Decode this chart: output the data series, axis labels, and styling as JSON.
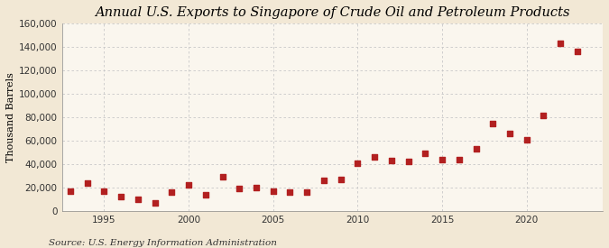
{
  "title": "Annual U.S. Exports to Singapore of Crude Oil and Petroleum Products",
  "ylabel": "Thousand Barrels",
  "source": "Source: U.S. Energy Information Administration",
  "background_color": "#f2e8d5",
  "plot_background_color": "#faf6ee",
  "marker_color": "#b22020",
  "grid_color": "#c8c8c8",
  "title_fontsize": 10.5,
  "ylabel_fontsize": 8,
  "source_fontsize": 7.5,
  "years": [
    1993,
    1994,
    1995,
    1996,
    1997,
    1998,
    1999,
    2000,
    2001,
    2002,
    2003,
    2004,
    2005,
    2006,
    2007,
    2008,
    2009,
    2010,
    2011,
    2012,
    2013,
    2014,
    2015,
    2016,
    2017,
    2018,
    2019,
    2020,
    2021,
    2022,
    2023
  ],
  "values": [
    17000,
    24000,
    17000,
    12000,
    10000,
    7000,
    16000,
    22000,
    14000,
    29000,
    19000,
    20000,
    17000,
    16000,
    16000,
    26000,
    27000,
    41000,
    46000,
    43000,
    42000,
    49000,
    44000,
    44000,
    53000,
    75000,
    66000,
    61000,
    82000,
    143000,
    136000
  ],
  "ylim": [
    0,
    160000
  ],
  "yticks": [
    0,
    20000,
    40000,
    60000,
    80000,
    100000,
    120000,
    140000,
    160000
  ],
  "ytick_labels": [
    "0",
    "20,000",
    "40,000",
    "60,000",
    "80,000",
    "100,000",
    "120,000",
    "140,000",
    "160,000"
  ],
  "xlim": [
    1992.5,
    2024.5
  ],
  "xticks": [
    1995,
    2000,
    2005,
    2010,
    2015,
    2020
  ]
}
